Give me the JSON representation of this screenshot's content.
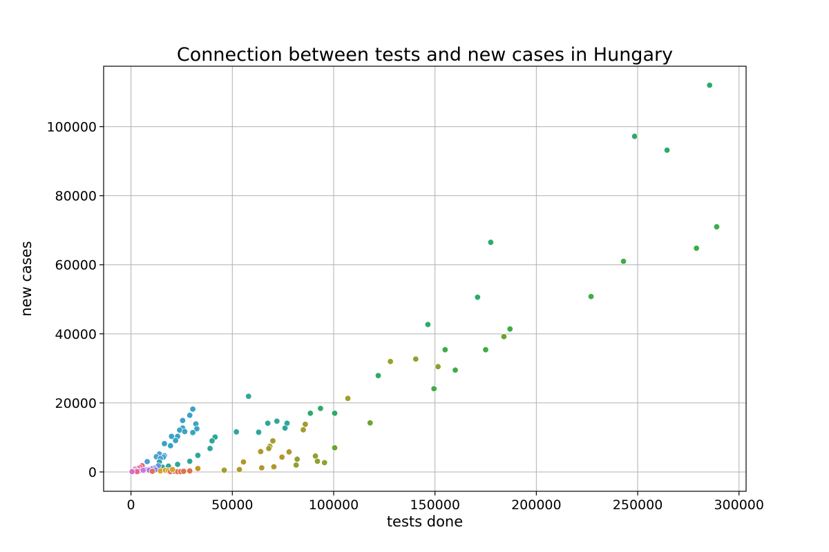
{
  "chart_data": {
    "type": "scatter",
    "title": "Connection between tests and new cases in Hungary",
    "xlabel": "tests done",
    "ylabel": "new cases",
    "xlim": [
      -13500,
      303500
    ],
    "ylim": [
      -5600,
      117500
    ],
    "xticks": [
      0,
      50000,
      100000,
      150000,
      200000,
      250000,
      300000
    ],
    "xtick_labels": [
      "0",
      "50000",
      "100000",
      "150000",
      "200000",
      "250000",
      "300000"
    ],
    "yticks": [
      0,
      20000,
      40000,
      60000,
      80000,
      100000
    ],
    "ytick_labels": [
      "0",
      "20000",
      "40000",
      "60000",
      "80000",
      "100000"
    ],
    "grid": true,
    "legend": "none",
    "points": [
      {
        "x": 285500,
        "y": 112000,
        "color": "#2eaa68"
      },
      {
        "x": 248500,
        "y": 97200,
        "color": "#2eaa68"
      },
      {
        "x": 264500,
        "y": 93200,
        "color": "#2eaa68"
      },
      {
        "x": 289000,
        "y": 71000,
        "color": "#3fad45"
      },
      {
        "x": 279000,
        "y": 64800,
        "color": "#3fad45"
      },
      {
        "x": 243000,
        "y": 61000,
        "color": "#3fad45"
      },
      {
        "x": 227000,
        "y": 50800,
        "color": "#3fad45"
      },
      {
        "x": 177500,
        "y": 66500,
        "color": "#2eaa68"
      },
      {
        "x": 171000,
        "y": 50600,
        "color": "#2eaa68"
      },
      {
        "x": 146500,
        "y": 42700,
        "color": "#2eaa68"
      },
      {
        "x": 187000,
        "y": 41400,
        "color": "#3fad45"
      },
      {
        "x": 184000,
        "y": 39200,
        "color": "#6aa52f"
      },
      {
        "x": 155000,
        "y": 35400,
        "color": "#3fad45"
      },
      {
        "x": 175000,
        "y": 35400,
        "color": "#3fad45"
      },
      {
        "x": 140500,
        "y": 32700,
        "color": "#8fa22e"
      },
      {
        "x": 128000,
        "y": 32000,
        "color": "#9b9f2c"
      },
      {
        "x": 151500,
        "y": 30500,
        "color": "#8fa22e"
      },
      {
        "x": 160000,
        "y": 29500,
        "color": "#3fad45"
      },
      {
        "x": 122000,
        "y": 27900,
        "color": "#2eaa68"
      },
      {
        "x": 149500,
        "y": 24100,
        "color": "#3fad45"
      },
      {
        "x": 58000,
        "y": 21900,
        "color": "#2ea79a"
      },
      {
        "x": 107000,
        "y": 21300,
        "color": "#9b9f2c"
      },
      {
        "x": 93500,
        "y": 18400,
        "color": "#2eaa68"
      },
      {
        "x": 88500,
        "y": 17000,
        "color": "#2eaa68"
      },
      {
        "x": 100500,
        "y": 17000,
        "color": "#2eaa68"
      },
      {
        "x": 72000,
        "y": 14700,
        "color": "#2ea79a"
      },
      {
        "x": 67500,
        "y": 14100,
        "color": "#2ea79a"
      },
      {
        "x": 77000,
        "y": 14100,
        "color": "#2ea79a"
      },
      {
        "x": 118000,
        "y": 14200,
        "color": "#6aa52f"
      },
      {
        "x": 86000,
        "y": 13800,
        "color": "#a39c2c"
      },
      {
        "x": 76000,
        "y": 12700,
        "color": "#2ea79a"
      },
      {
        "x": 85000,
        "y": 12200,
        "color": "#a39c2c"
      },
      {
        "x": 52000,
        "y": 11600,
        "color": "#2ea79a"
      },
      {
        "x": 63000,
        "y": 11500,
        "color": "#2ea79a"
      },
      {
        "x": 41500,
        "y": 10100,
        "color": "#2ea79a"
      },
      {
        "x": 40000,
        "y": 9000,
        "color": "#2ea79a"
      },
      {
        "x": 70000,
        "y": 9000,
        "color": "#a39c2c"
      },
      {
        "x": 68500,
        "y": 7400,
        "color": "#a39c2c"
      },
      {
        "x": 100500,
        "y": 7000,
        "color": "#6aa52f"
      },
      {
        "x": 68000,
        "y": 6800,
        "color": "#a39c2c"
      },
      {
        "x": 39000,
        "y": 6800,
        "color": "#2ea79a"
      },
      {
        "x": 64000,
        "y": 5900,
        "color": "#b1962b"
      },
      {
        "x": 78000,
        "y": 5800,
        "color": "#b1962b"
      },
      {
        "x": 33000,
        "y": 4800,
        "color": "#2ea79a"
      },
      {
        "x": 91000,
        "y": 4600,
        "color": "#8fa22e"
      },
      {
        "x": 74500,
        "y": 4300,
        "color": "#b1962b"
      },
      {
        "x": 82000,
        "y": 3700,
        "color": "#8fa22e"
      },
      {
        "x": 92000,
        "y": 3100,
        "color": "#8fa22e"
      },
      {
        "x": 95500,
        "y": 2700,
        "color": "#8fa22e"
      },
      {
        "x": 55500,
        "y": 2900,
        "color": "#b1962b"
      },
      {
        "x": 29000,
        "y": 3100,
        "color": "#2ea79a"
      },
      {
        "x": 81500,
        "y": 2000,
        "color": "#8fa22e"
      },
      {
        "x": 70500,
        "y": 1500,
        "color": "#b1962b"
      },
      {
        "x": 64500,
        "y": 1200,
        "color": "#b1962b"
      },
      {
        "x": 33000,
        "y": 1000,
        "color": "#c9902b"
      },
      {
        "x": 46000,
        "y": 500,
        "color": "#a39c2c"
      },
      {
        "x": 53500,
        "y": 700,
        "color": "#b1962b"
      },
      {
        "x": 30500,
        "y": 18200,
        "color": "#3aa3c3"
      },
      {
        "x": 29000,
        "y": 16400,
        "color": "#3aa3c3"
      },
      {
        "x": 25500,
        "y": 14900,
        "color": "#3aa3c3"
      },
      {
        "x": 32000,
        "y": 13900,
        "color": "#3aa3c3"
      },
      {
        "x": 25500,
        "y": 12700,
        "color": "#3aa3c3"
      },
      {
        "x": 32500,
        "y": 12500,
        "color": "#3aa3c3"
      },
      {
        "x": 24000,
        "y": 12100,
        "color": "#3aa3c3"
      },
      {
        "x": 26500,
        "y": 11700,
        "color": "#3aa3c3"
      },
      {
        "x": 30500,
        "y": 11400,
        "color": "#3aa3c3"
      },
      {
        "x": 20000,
        "y": 10300,
        "color": "#3aa3c3"
      },
      {
        "x": 23000,
        "y": 10300,
        "color": "#3aa3c3"
      },
      {
        "x": 22000,
        "y": 9100,
        "color": "#3aa3c3"
      },
      {
        "x": 16500,
        "y": 8200,
        "color": "#3aa3c3"
      },
      {
        "x": 19500,
        "y": 7600,
        "color": "#3aa3c3"
      },
      {
        "x": 14000,
        "y": 5200,
        "color": "#4a9fd6"
      },
      {
        "x": 16500,
        "y": 4700,
        "color": "#4a9fd6"
      },
      {
        "x": 12500,
        "y": 4400,
        "color": "#4a9fd6"
      },
      {
        "x": 16000,
        "y": 4300,
        "color": "#4a9fd6"
      },
      {
        "x": 14500,
        "y": 3900,
        "color": "#4a9fd6"
      },
      {
        "x": 8000,
        "y": 3000,
        "color": "#4a9fd6"
      },
      {
        "x": 14000,
        "y": 2900,
        "color": "#2ea79a"
      },
      {
        "x": 23000,
        "y": 2200,
        "color": "#2ea79a"
      },
      {
        "x": 18500,
        "y": 1700,
        "color": "#2ea79a"
      },
      {
        "x": 15500,
        "y": 1400,
        "color": "#2ea79a"
      },
      {
        "x": 13500,
        "y": 1800,
        "color": "#6a8ee8"
      },
      {
        "x": 11500,
        "y": 1100,
        "color": "#6a8ee8"
      },
      {
        "x": 10000,
        "y": 900,
        "color": "#8a84ea"
      },
      {
        "x": 8500,
        "y": 700,
        "color": "#a87ae8"
      },
      {
        "x": 7000,
        "y": 600,
        "color": "#a87ae8"
      },
      {
        "x": 9000,
        "y": 500,
        "color": "#a87ae8"
      },
      {
        "x": 12000,
        "y": 600,
        "color": "#8a84ea"
      },
      {
        "x": 5500,
        "y": 1800,
        "color": "#e8617a"
      },
      {
        "x": 4500,
        "y": 1300,
        "color": "#e8617a"
      },
      {
        "x": 3500,
        "y": 1000,
        "color": "#e06895"
      },
      {
        "x": 2000,
        "y": 800,
        "color": "#e06895"
      },
      {
        "x": 2500,
        "y": 400,
        "color": "#d56fc7"
      },
      {
        "x": 4000,
        "y": 300,
        "color": "#d56fc7"
      },
      {
        "x": 1000,
        "y": 200,
        "color": "#d56fc7"
      },
      {
        "x": 3000,
        "y": 100,
        "color": "#e06895"
      },
      {
        "x": 6000,
        "y": 500,
        "color": "#c877d8"
      },
      {
        "x": 500,
        "y": 100,
        "color": "#d56fc7"
      },
      {
        "x": 10500,
        "y": 200,
        "color": "#e0704f"
      },
      {
        "x": 14500,
        "y": 300,
        "color": "#d8a02c"
      },
      {
        "x": 17000,
        "y": 500,
        "color": "#d8a02c"
      },
      {
        "x": 18500,
        "y": 400,
        "color": "#d8a02c"
      },
      {
        "x": 19500,
        "y": 100,
        "color": "#e0704f"
      },
      {
        "x": 21500,
        "y": 200,
        "color": "#e0704f"
      },
      {
        "x": 23000,
        "y": 100,
        "color": "#e0704f"
      },
      {
        "x": 24500,
        "y": 100,
        "color": "#e0704f"
      },
      {
        "x": 26000,
        "y": 200,
        "color": "#e0704f"
      },
      {
        "x": 29000,
        "y": 300,
        "color": "#e0704f"
      },
      {
        "x": 20500,
        "y": 700,
        "color": "#d8a02c"
      }
    ]
  }
}
